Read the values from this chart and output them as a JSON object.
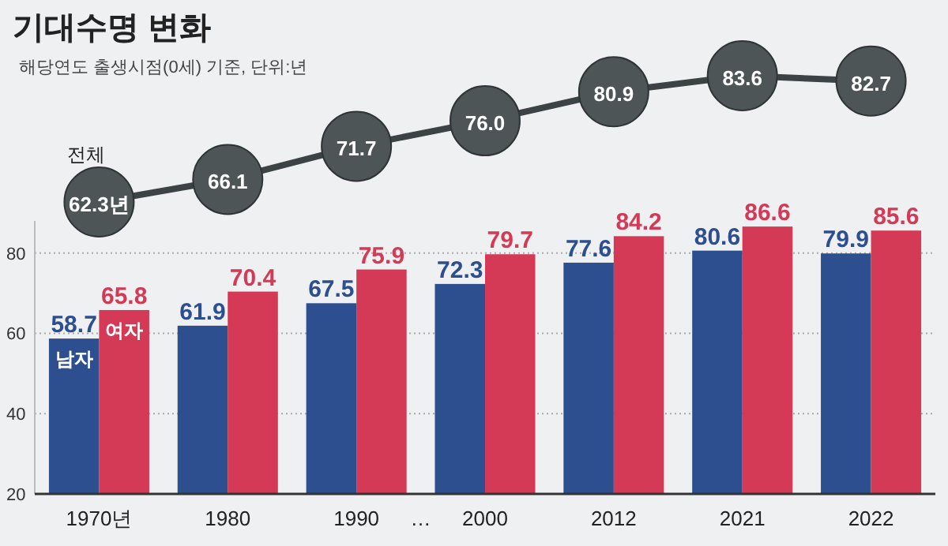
{
  "chart_data": [
    {
      "type": "line",
      "title": "기대수명 변화",
      "subtitle": "해당연도 출생시점(0세) 기준, 단위:년",
      "categories": [
        null,
        null,
        null,
        null,
        null,
        null,
        null
      ],
      "series": [
        {
          "name": "전체",
          "color": "#3b4345",
          "values": [
            62.3,
            66.1,
            71.7,
            76.0,
            80.9,
            83.6,
            82.7
          ],
          "value_labels": [
            "62.3년",
            "66.1",
            "71.7",
            "76.0",
            "80.9",
            "83.6",
            "82.7"
          ]
        }
      ],
      "marker": "circle"
    },
    {
      "type": "bar",
      "categories": [
        "1970년",
        "1980",
        "1990",
        "2000",
        "2012",
        "2021",
        "2022"
      ],
      "series": [
        {
          "name": "남자",
          "color": "#2d4f90",
          "values": [
            58.7,
            61.9,
            67.5,
            72.3,
            77.6,
            80.6,
            79.9
          ]
        },
        {
          "name": "여자",
          "color": "#d43a56",
          "values": [
            65.8,
            70.4,
            75.9,
            79.7,
            84.2,
            86.6,
            85.6
          ]
        }
      ],
      "ylim": [
        20,
        88
      ],
      "yticks": [
        20,
        40,
        60,
        80
      ],
      "grid": "y",
      "data_labels": true,
      "annotations": [
        "…"
      ]
    }
  ]
}
